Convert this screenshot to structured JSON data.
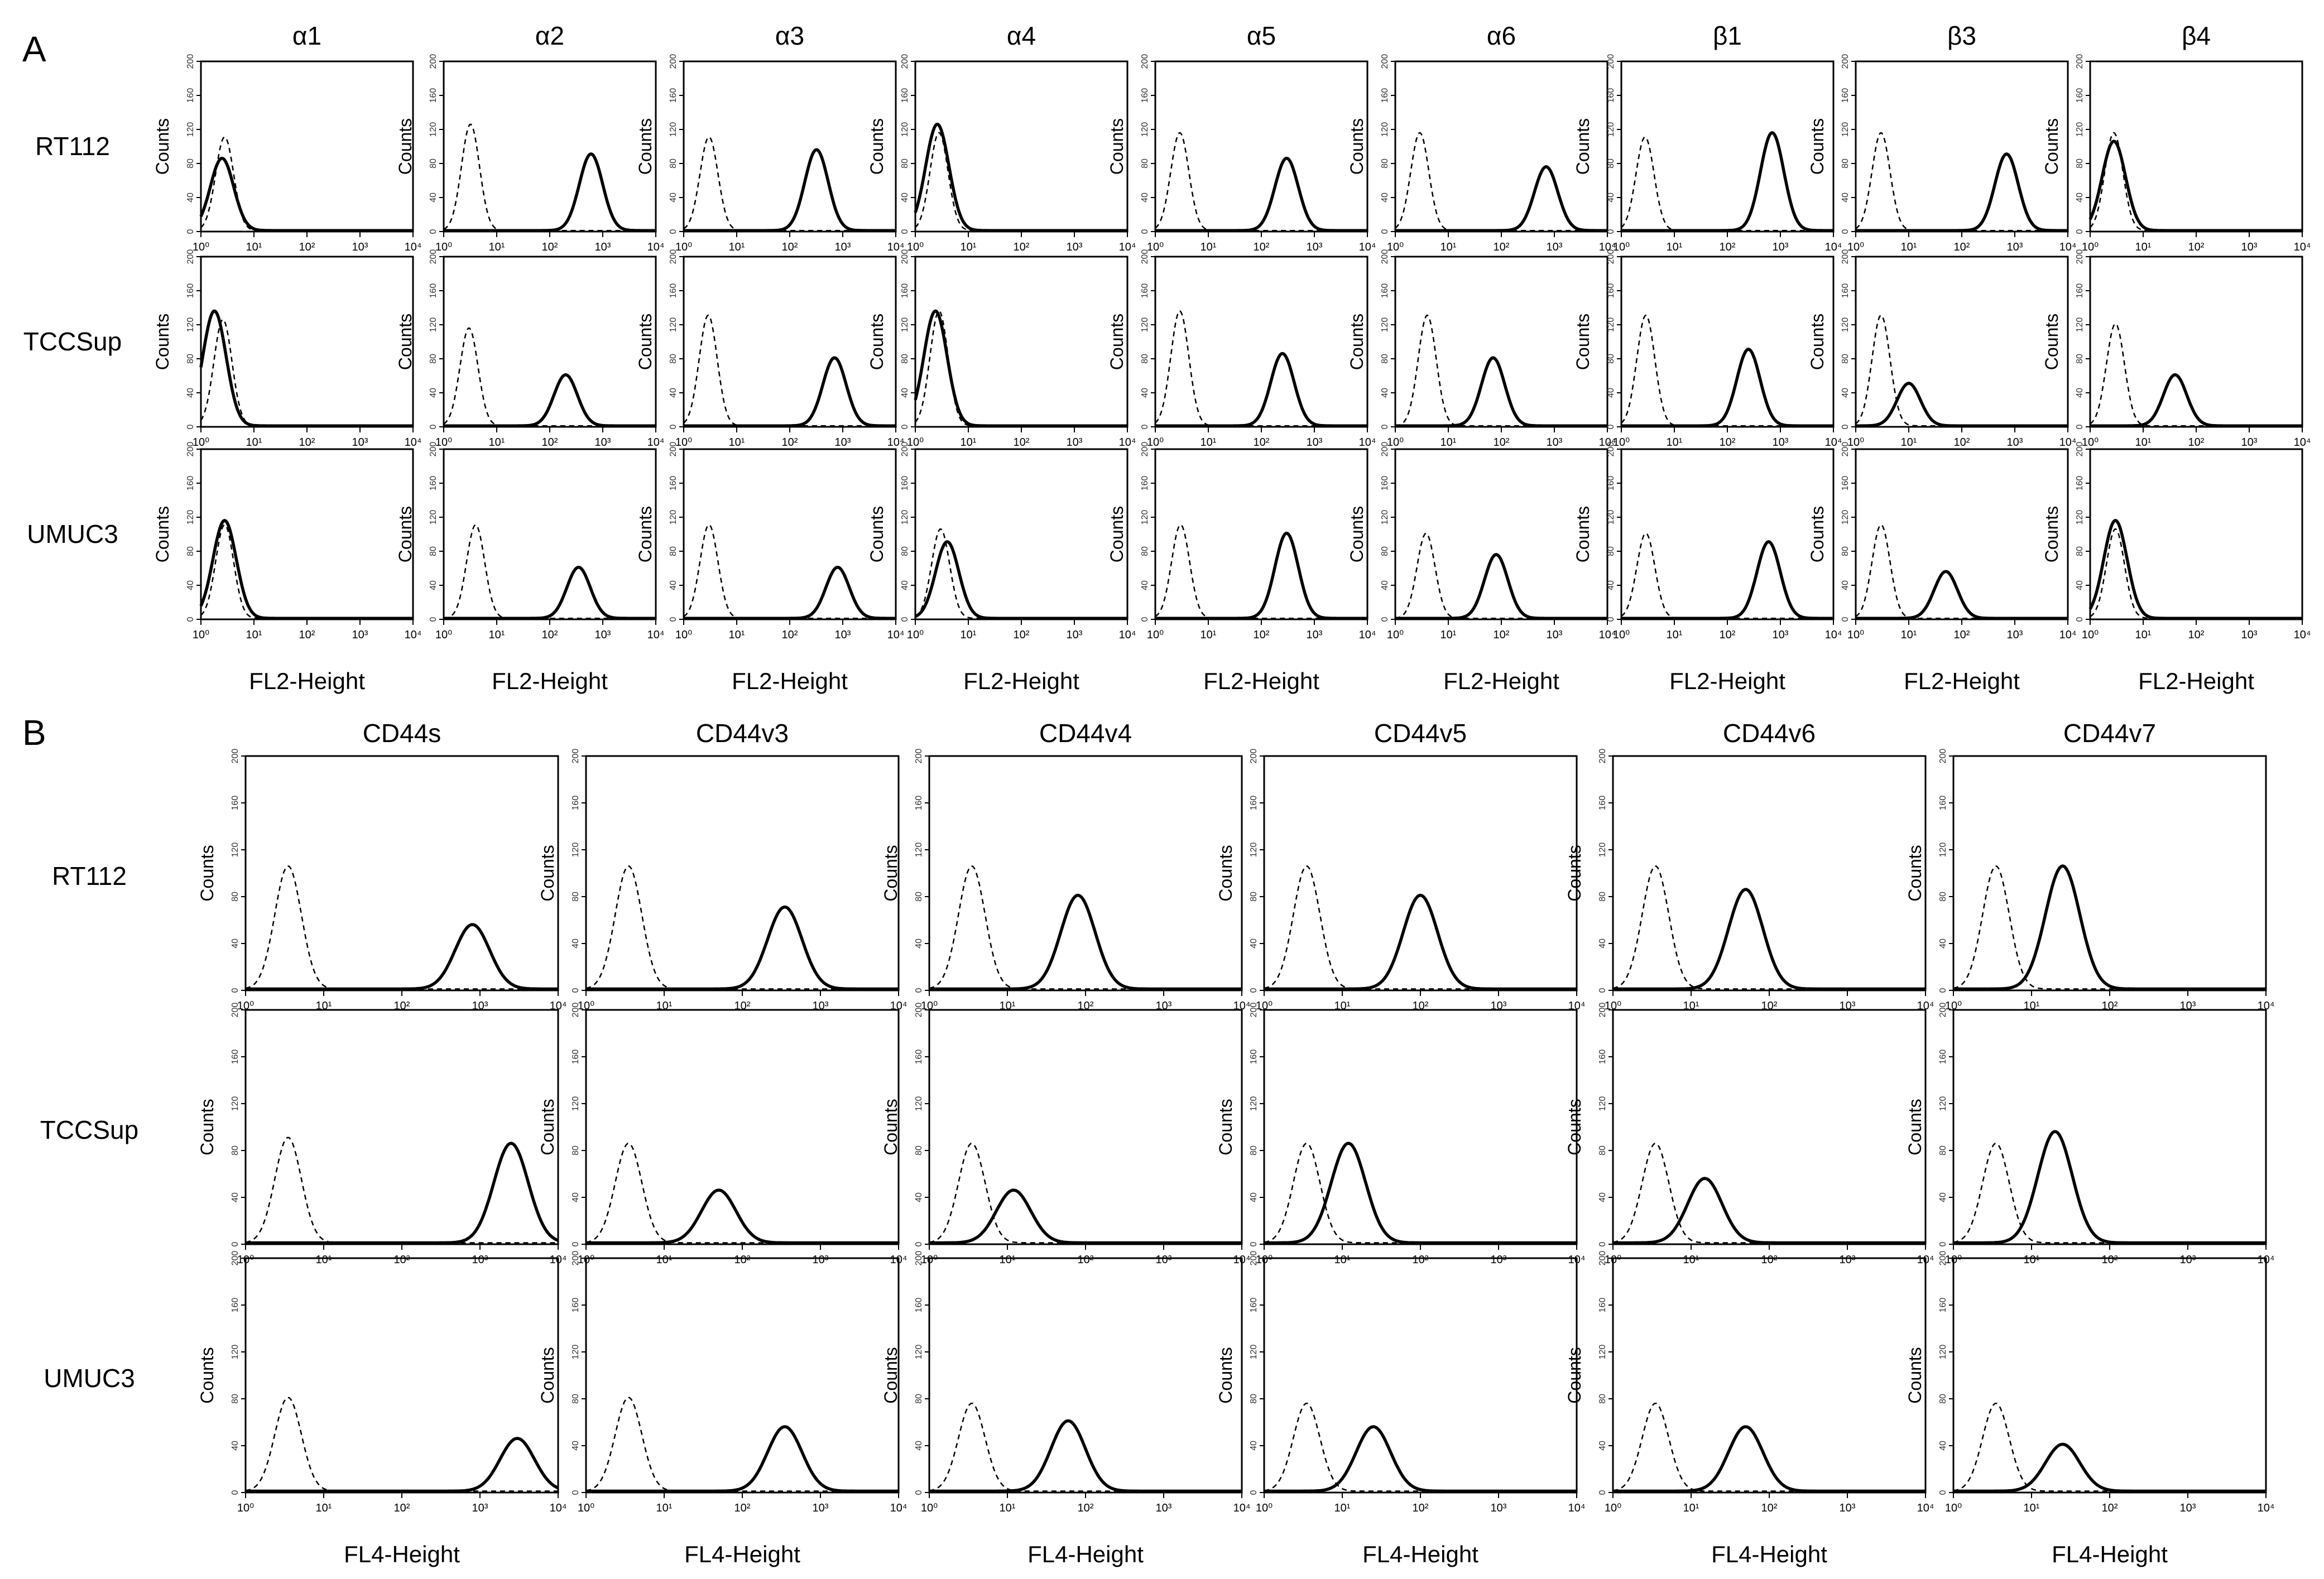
{
  "panels": [
    {
      "letter": "A",
      "axis_label": "FL2-Height",
      "ylabel": "Counts",
      "yticks": [
        "0",
        "40",
        "80",
        "120",
        "160",
        "200"
      ],
      "xticks": [
        "10⁰",
        "10¹",
        "10²",
        "10³",
        "10⁴"
      ],
      "columns": [
        "α1",
        "α2",
        "α3",
        "α4",
        "α5",
        "α6",
        "β1",
        "β3",
        "β4"
      ],
      "rows": [
        "RT112",
        "TCCSup",
        "UMUC3"
      ]
    },
    {
      "letter": "B",
      "axis_label": "FL4-Height",
      "ylabel": "Counts",
      "yticks": [
        "0",
        "40",
        "80",
        "120",
        "160",
        "200"
      ],
      "xticks": [
        "10⁰",
        "10¹",
        "10²",
        "10³",
        "10⁴"
      ],
      "columns": [
        "CD44s",
        "CD44v3",
        "CD44v4",
        "CD44v5",
        "CD44v6",
        "CD44v7"
      ],
      "rows": [
        "RT112",
        "TCCSup",
        "UMUC3"
      ]
    }
  ],
  "chart_data": [
    {
      "type": "line",
      "panel": "A",
      "x_scale": "log",
      "xlim": [
        1,
        10000
      ],
      "ylim": [
        0,
        200
      ],
      "xlabel": "FL2-Height",
      "ylabel": "Counts",
      "style_key": {
        "isotype_control": "dashed",
        "stained": "solid"
      },
      "peaks": [
        [
          [
            2.8,
            110,
            2.5,
            85
          ],
          [
            3.2,
            125,
            600,
            90
          ],
          [
            3.0,
            110,
            320,
            95
          ],
          [
            2.8,
            115,
            2.6,
            125
          ],
          [
            2.9,
            115,
            300,
            85
          ],
          [
            2.9,
            115,
            700,
            75
          ],
          [
            2.8,
            110,
            700,
            115
          ],
          [
            3.0,
            115,
            700,
            90
          ],
          [
            2.8,
            115,
            2.8,
            105
          ]
        ],
        [
          [
            2.6,
            125,
            1.8,
            135
          ],
          [
            3.0,
            115,
            200,
            60
          ],
          [
            2.9,
            130,
            700,
            80
          ],
          [
            2.8,
            135,
            2.4,
            135
          ],
          [
            2.9,
            135,
            250,
            85
          ],
          [
            4.0,
            130,
            70,
            80
          ],
          [
            2.9,
            130,
            250,
            90
          ],
          [
            3.0,
            130,
            10,
            50
          ],
          [
            3.0,
            120,
            40,
            60
          ]
        ],
        [
          [
            2.8,
            110,
            2.8,
            115
          ],
          [
            4.0,
            110,
            350,
            60
          ],
          [
            3.0,
            110,
            800,
            60
          ],
          [
            3.0,
            105,
            4.0,
            90
          ],
          [
            3.0,
            110,
            300,
            100
          ],
          [
            3.8,
            100,
            80,
            75
          ],
          [
            2.9,
            100,
            600,
            90
          ],
          [
            3.0,
            110,
            50,
            55
          ],
          [
            3.0,
            105,
            3.0,
            115
          ]
        ]
      ]
    },
    {
      "type": "line",
      "panel": "B",
      "x_scale": "log",
      "xlim": [
        1,
        10000
      ],
      "ylim": [
        0,
        200
      ],
      "xlabel": "FL4-Height",
      "ylabel": "Counts",
      "style_key": {
        "isotype_control": "dashed",
        "stained": "solid"
      },
      "peaks": [
        [
          [
            3.5,
            105,
            800,
            55
          ],
          [
            3.5,
            105,
            350,
            70
          ],
          [
            3.5,
            105,
            80,
            80
          ],
          [
            3.5,
            105,
            100,
            80
          ],
          [
            3.5,
            105,
            50,
            85
          ],
          [
            3.5,
            105,
            25,
            105
          ]
        ],
        [
          [
            3.5,
            90,
            2500,
            85
          ],
          [
            3.5,
            85,
            50,
            45
          ],
          [
            3.5,
            85,
            12,
            45
          ],
          [
            3.5,
            85,
            12,
            85
          ],
          [
            3.5,
            85,
            15,
            55
          ],
          [
            3.5,
            85,
            20,
            95
          ]
        ],
        [
          [
            3.5,
            80,
            3000,
            45
          ],
          [
            3.5,
            80,
            350,
            55
          ],
          [
            3.5,
            75,
            60,
            60
          ],
          [
            3.5,
            75,
            25,
            55
          ],
          [
            3.5,
            75,
            50,
            55
          ],
          [
            3.5,
            75,
            25,
            40
          ]
        ]
      ]
    }
  ]
}
